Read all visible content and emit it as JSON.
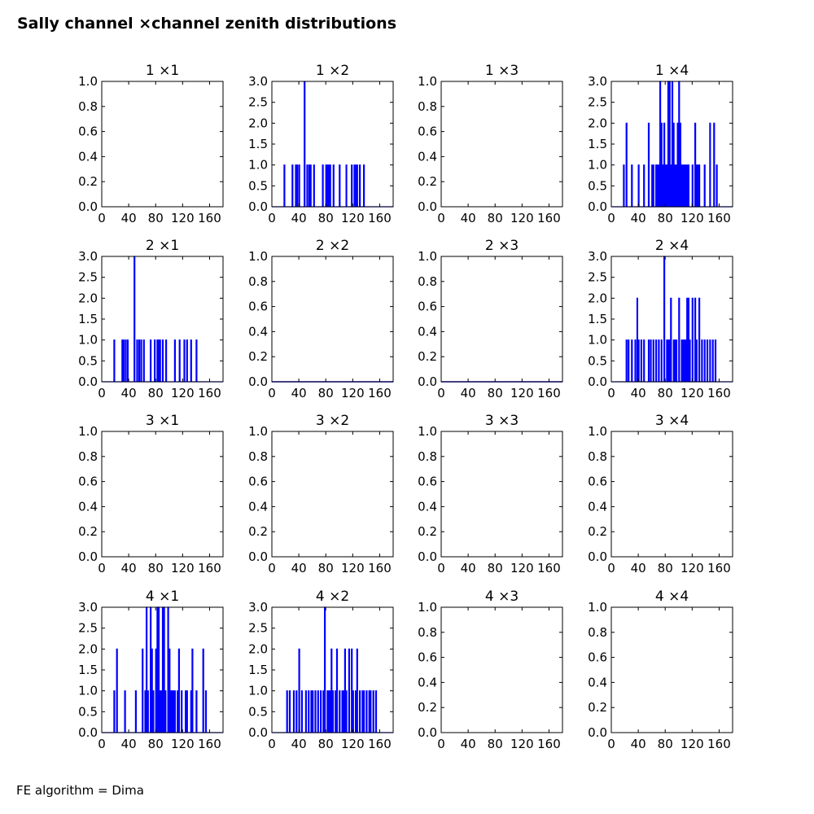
{
  "figure": {
    "title": "Sally channel ×channel zenith distributions",
    "footer": "FE algorithm = Dima"
  },
  "chart_data": [
    {
      "type": "histogram",
      "title": "1 ×1",
      "xlim": [
        0,
        180
      ],
      "ylim": [
        0,
        1
      ],
      "x_ticks": [
        "0",
        "40",
        "80",
        "120",
        "160"
      ],
      "y_ticks": [
        "0.0",
        "0.2",
        "0.4",
        "0.6",
        "0.8",
        "1.0"
      ],
      "values": []
    },
    {
      "type": "histogram",
      "title": "1 ×2",
      "xlim": [
        0,
        180
      ],
      "ylim": [
        0,
        3
      ],
      "x_ticks": [
        "0",
        "40",
        "80",
        "120",
        "160"
      ],
      "y_ticks": [
        "0.0",
        "0.5",
        "1.0",
        "1.5",
        "2.0",
        "2.5",
        "3.0"
      ],
      "color": "#0000ff",
      "values": [
        [
          18,
          1
        ],
        [
          30,
          1
        ],
        [
          35,
          1
        ],
        [
          37,
          1
        ],
        [
          40,
          1
        ],
        [
          48,
          3
        ],
        [
          52,
          1
        ],
        [
          55,
          1
        ],
        [
          57,
          1
        ],
        [
          62,
          1
        ],
        [
          75,
          1
        ],
        [
          80,
          1
        ],
        [
          82,
          1
        ],
        [
          84,
          1
        ],
        [
          86,
          1
        ],
        [
          91,
          1
        ],
        [
          100,
          1
        ],
        [
          110,
          1
        ],
        [
          118,
          1
        ],
        [
          122,
          1
        ],
        [
          124,
          1
        ],
        [
          126,
          1
        ],
        [
          130,
          1
        ],
        [
          136,
          1
        ]
      ]
    },
    {
      "type": "histogram",
      "title": "1 ×3",
      "xlim": [
        0,
        180
      ],
      "ylim": [
        0,
        1
      ],
      "x_ticks": [
        "0",
        "40",
        "80",
        "120",
        "160"
      ],
      "y_ticks": [
        "0.0",
        "0.2",
        "0.4",
        "0.6",
        "0.8",
        "1.0"
      ],
      "values": []
    },
    {
      "type": "histogram",
      "title": "1 ×4",
      "xlim": [
        0,
        180
      ],
      "ylim": [
        0,
        3
      ],
      "x_ticks": [
        "0",
        "40",
        "80",
        "120",
        "160"
      ],
      "y_ticks": [
        "0.0",
        "0.5",
        "1.0",
        "1.5",
        "2.0",
        "2.5",
        "3.0"
      ],
      "color": "#0000ff",
      "values": [
        [
          18,
          1
        ],
        [
          22,
          2
        ],
        [
          30,
          1
        ],
        [
          40,
          1
        ],
        [
          48,
          1
        ],
        [
          55,
          2
        ],
        [
          60,
          1
        ],
        [
          62,
          1
        ],
        [
          66,
          1
        ],
        [
          68,
          1
        ],
        [
          70,
          1
        ],
        [
          72,
          3
        ],
        [
          74,
          2
        ],
        [
          76,
          1
        ],
        [
          78,
          2
        ],
        [
          80,
          1
        ],
        [
          82,
          1
        ],
        [
          84,
          3
        ],
        [
          86,
          3
        ],
        [
          88,
          1
        ],
        [
          90,
          3
        ],
        [
          92,
          2
        ],
        [
          94,
          1
        ],
        [
          96,
          1
        ],
        [
          98,
          2
        ],
        [
          100,
          3
        ],
        [
          102,
          2
        ],
        [
          104,
          1
        ],
        [
          106,
          1
        ],
        [
          108,
          1
        ],
        [
          110,
          1
        ],
        [
          112,
          1
        ],
        [
          114,
          1
        ],
        [
          120,
          1
        ],
        [
          124,
          2
        ],
        [
          126,
          1
        ],
        [
          128,
          1
        ],
        [
          130,
          1
        ],
        [
          138,
          1
        ],
        [
          146,
          2
        ],
        [
          152,
          2
        ],
        [
          156,
          1
        ]
      ]
    },
    {
      "type": "histogram",
      "title": "2 ×1",
      "xlim": [
        0,
        180
      ],
      "ylim": [
        0,
        3
      ],
      "x_ticks": [
        "0",
        "40",
        "80",
        "120",
        "160"
      ],
      "y_ticks": [
        "0.0",
        "0.5",
        "1.0",
        "1.5",
        "2.0",
        "2.5",
        "3.0"
      ],
      "color": "#0000ff",
      "values": [
        [
          18,
          1
        ],
        [
          30,
          1
        ],
        [
          32,
          1
        ],
        [
          35,
          1
        ],
        [
          38,
          1
        ],
        [
          48,
          3
        ],
        [
          52,
          1
        ],
        [
          55,
          1
        ],
        [
          58,
          1
        ],
        [
          62,
          1
        ],
        [
          72,
          1
        ],
        [
          78,
          1
        ],
        [
          82,
          1
        ],
        [
          84,
          1
        ],
        [
          86,
          1
        ],
        [
          90,
          1
        ],
        [
          95,
          1
        ],
        [
          108,
          1
        ],
        [
          115,
          1
        ],
        [
          122,
          1
        ],
        [
          126,
          1
        ],
        [
          132,
          1
        ],
        [
          140,
          1
        ]
      ]
    },
    {
      "type": "histogram",
      "title": "2 ×2",
      "xlim": [
        0,
        180
      ],
      "ylim": [
        0,
        1
      ],
      "x_ticks": [
        "0",
        "40",
        "80",
        "120",
        "160"
      ],
      "y_ticks": [
        "0.0",
        "0.2",
        "0.4",
        "0.6",
        "0.8",
        "1.0"
      ],
      "values": []
    },
    {
      "type": "histogram",
      "title": "2 ×3",
      "xlim": [
        0,
        180
      ],
      "ylim": [
        0,
        1
      ],
      "x_ticks": [
        "0",
        "40",
        "80",
        "120",
        "160"
      ],
      "y_ticks": [
        "0.0",
        "0.2",
        "0.4",
        "0.6",
        "0.8",
        "1.0"
      ],
      "values": []
    },
    {
      "type": "histogram",
      "title": "2 ×4",
      "xlim": [
        0,
        180
      ],
      "ylim": [
        0,
        3
      ],
      "x_ticks": [
        "0",
        "40",
        "80",
        "120",
        "160"
      ],
      "y_ticks": [
        "0.0",
        "0.5",
        "1.0",
        "1.5",
        "2.0",
        "2.5",
        "3.0"
      ],
      "color": "#0000ff",
      "values": [
        [
          22,
          1
        ],
        [
          25,
          1
        ],
        [
          30,
          1
        ],
        [
          35,
          1
        ],
        [
          38,
          2
        ],
        [
          40,
          1
        ],
        [
          44,
          1
        ],
        [
          48,
          1
        ],
        [
          55,
          1
        ],
        [
          58,
          1
        ],
        [
          62,
          1
        ],
        [
          66,
          1
        ],
        [
          70,
          1
        ],
        [
          74,
          1
        ],
        [
          78,
          3
        ],
        [
          82,
          1
        ],
        [
          84,
          1
        ],
        [
          86,
          1
        ],
        [
          88,
          2
        ],
        [
          92,
          1
        ],
        [
          94,
          1
        ],
        [
          96,
          1
        ],
        [
          100,
          2
        ],
        [
          104,
          1
        ],
        [
          106,
          1
        ],
        [
          108,
          1
        ],
        [
          110,
          1
        ],
        [
          112,
          2
        ],
        [
          114,
          2
        ],
        [
          116,
          1
        ],
        [
          120,
          2
        ],
        [
          124,
          2
        ],
        [
          126,
          1
        ],
        [
          130,
          2
        ],
        [
          134,
          1
        ],
        [
          138,
          1
        ],
        [
          142,
          1
        ],
        [
          146,
          1
        ],
        [
          150,
          1
        ],
        [
          154,
          1
        ]
      ]
    },
    {
      "type": "histogram",
      "title": "3 ×1",
      "xlim": [
        0,
        180
      ],
      "ylim": [
        0,
        1
      ],
      "x_ticks": [
        "0",
        "40",
        "80",
        "120",
        "160"
      ],
      "y_ticks": [
        "0.0",
        "0.2",
        "0.4",
        "0.6",
        "0.8",
        "1.0"
      ],
      "values": []
    },
    {
      "type": "histogram",
      "title": "3 ×2",
      "xlim": [
        0,
        180
      ],
      "ylim": [
        0,
        1
      ],
      "x_ticks": [
        "0",
        "40",
        "80",
        "120",
        "160"
      ],
      "y_ticks": [
        "0.0",
        "0.2",
        "0.4",
        "0.6",
        "0.8",
        "1.0"
      ],
      "values": []
    },
    {
      "type": "histogram",
      "title": "3 ×3",
      "xlim": [
        0,
        180
      ],
      "ylim": [
        0,
        1
      ],
      "x_ticks": [
        "0",
        "40",
        "80",
        "120",
        "160"
      ],
      "y_ticks": [
        "0.0",
        "0.2",
        "0.4",
        "0.6",
        "0.8",
        "1.0"
      ],
      "values": []
    },
    {
      "type": "histogram",
      "title": "3 ×4",
      "xlim": [
        0,
        180
      ],
      "ylim": [
        0,
        1
      ],
      "x_ticks": [
        "0",
        "40",
        "80",
        "120",
        "160"
      ],
      "y_ticks": [
        "0.0",
        "0.2",
        "0.4",
        "0.6",
        "0.8",
        "1.0"
      ],
      "values": []
    },
    {
      "type": "histogram",
      "title": "4 ×1",
      "xlim": [
        0,
        180
      ],
      "ylim": [
        0,
        3
      ],
      "x_ticks": [
        "0",
        "40",
        "80",
        "120",
        "160"
      ],
      "y_ticks": [
        "0.0",
        "0.5",
        "1.0",
        "1.5",
        "2.0",
        "2.5",
        "3.0"
      ],
      "color": "#0000ff",
      "values": [
        [
          18,
          1
        ],
        [
          22,
          2
        ],
        [
          34,
          1
        ],
        [
          50,
          1
        ],
        [
          60,
          2
        ],
        [
          64,
          1
        ],
        [
          66,
          3
        ],
        [
          68,
          1
        ],
        [
          72,
          3
        ],
        [
          74,
          2
        ],
        [
          76,
          1
        ],
        [
          80,
          2
        ],
        [
          82,
          3
        ],
        [
          84,
          3
        ],
        [
          86,
          1
        ],
        [
          88,
          1
        ],
        [
          90,
          3
        ],
        [
          92,
          3
        ],
        [
          94,
          1
        ],
        [
          98,
          3
        ],
        [
          100,
          2
        ],
        [
          102,
          1
        ],
        [
          104,
          1
        ],
        [
          106,
          1
        ],
        [
          108,
          1
        ],
        [
          112,
          1
        ],
        [
          114,
          2
        ],
        [
          118,
          1
        ],
        [
          124,
          1
        ],
        [
          126,
          1
        ],
        [
          132,
          1
        ],
        [
          134,
          2
        ],
        [
          140,
          1
        ],
        [
          150,
          2
        ],
        [
          154,
          1
        ]
      ]
    },
    {
      "type": "histogram",
      "title": "4 ×2",
      "xlim": [
        0,
        180
      ],
      "ylim": [
        0,
        3
      ],
      "x_ticks": [
        "0",
        "40",
        "80",
        "120",
        "160"
      ],
      "y_ticks": [
        "0.0",
        "0.5",
        "1.0",
        "1.5",
        "2.0",
        "2.5",
        "3.0"
      ],
      "color": "#0000ff",
      "values": [
        [
          22,
          1
        ],
        [
          26,
          1
        ],
        [
          32,
          1
        ],
        [
          36,
          1
        ],
        [
          40,
          2
        ],
        [
          44,
          1
        ],
        [
          50,
          1
        ],
        [
          54,
          1
        ],
        [
          58,
          1
        ],
        [
          60,
          1
        ],
        [
          64,
          1
        ],
        [
          68,
          1
        ],
        [
          72,
          1
        ],
        [
          76,
          1
        ],
        [
          78,
          3
        ],
        [
          82,
          1
        ],
        [
          84,
          1
        ],
        [
          86,
          1
        ],
        [
          88,
          2
        ],
        [
          90,
          1
        ],
        [
          94,
          1
        ],
        [
          96,
          2
        ],
        [
          100,
          1
        ],
        [
          104,
          1
        ],
        [
          106,
          1
        ],
        [
          108,
          2
        ],
        [
          110,
          1
        ],
        [
          114,
          2
        ],
        [
          118,
          2
        ],
        [
          120,
          1
        ],
        [
          124,
          1
        ],
        [
          126,
          2
        ],
        [
          130,
          1
        ],
        [
          134,
          1
        ],
        [
          136,
          1
        ],
        [
          140,
          1
        ],
        [
          144,
          1
        ],
        [
          146,
          1
        ],
        [
          150,
          1
        ],
        [
          154,
          1
        ]
      ]
    },
    {
      "type": "histogram",
      "title": "4 ×3",
      "xlim": [
        0,
        180
      ],
      "ylim": [
        0,
        1
      ],
      "x_ticks": [
        "0",
        "40",
        "80",
        "120",
        "160"
      ],
      "y_ticks": [
        "0.0",
        "0.2",
        "0.4",
        "0.6",
        "0.8",
        "1.0"
      ],
      "values": []
    },
    {
      "type": "histogram",
      "title": "4 ×4",
      "xlim": [
        0,
        180
      ],
      "ylim": [
        0,
        1
      ],
      "x_ticks": [
        "0",
        "40",
        "80",
        "120",
        "160"
      ],
      "y_ticks": [
        "0.0",
        "0.2",
        "0.4",
        "0.6",
        "0.8",
        "1.0"
      ],
      "values": []
    }
  ]
}
